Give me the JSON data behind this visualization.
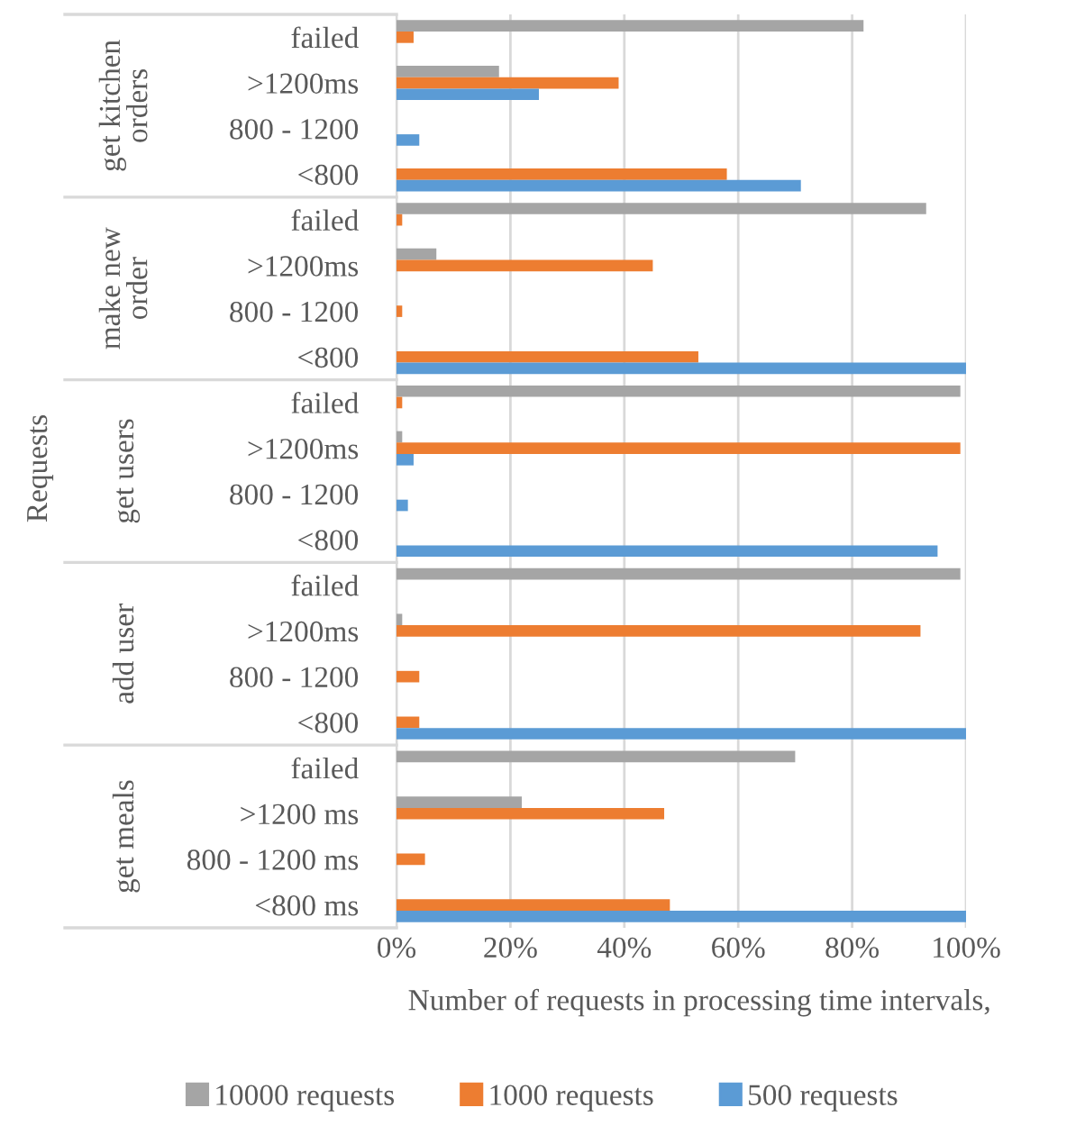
{
  "chart_data": {
    "type": "bar",
    "orientation": "horizontal",
    "xlabel": "Number of requests in processing time intervals,",
    "ylabel": "Requests",
    "categories": [
      "failed",
      ">1200ms",
      "800 - 1200",
      "<800",
      "failed",
      ">1200ms",
      "800 - 1200",
      "<800",
      "failed",
      ">1200ms",
      "800 - 1200",
      "<800",
      "failed",
      ">1200ms",
      "800 - 1200",
      "<800",
      "failed",
      ">1200 ms",
      "800 - 1200 ms",
      "<800 ms"
    ],
    "annotations": [
      "get kitchen orders",
      "make new order",
      "get users",
      "add user",
      "get meals"
    ],
    "series": [
      {
        "name": "10000 requests",
        "color": "#a5a5a5",
        "values": [
          82,
          18,
          0,
          0,
          93,
          7,
          0,
          0,
          99,
          1,
          0,
          0,
          99,
          1,
          0,
          0,
          70,
          22,
          0,
          0
        ]
      },
      {
        "name": "1000 requests",
        "color": "#ed7d31",
        "values": [
          3,
          39,
          0,
          58,
          1,
          45,
          1,
          53,
          1,
          99,
          0,
          0,
          0,
          92,
          4,
          4,
          0,
          47,
          5,
          48
        ]
      },
      {
        "name": "500 requests",
        "color": "#5b9bd5",
        "values": [
          0,
          25,
          4,
          71,
          0,
          0,
          0,
          100,
          0,
          3,
          2,
          95,
          0,
          0,
          0,
          100,
          0,
          0,
          0,
          100
        ]
      }
    ],
    "xlim": [
      0,
      100
    ],
    "xticks": [
      {
        "value": 0,
        "label": "0%"
      },
      {
        "value": 20,
        "label": "20%"
      },
      {
        "value": 40,
        "label": "40%"
      },
      {
        "value": 60,
        "label": "60%"
      },
      {
        "value": 80,
        "label": "80%"
      },
      {
        "value": 100,
        "label": "100%"
      }
    ],
    "grid": "x",
    "legend": "bottom"
  }
}
